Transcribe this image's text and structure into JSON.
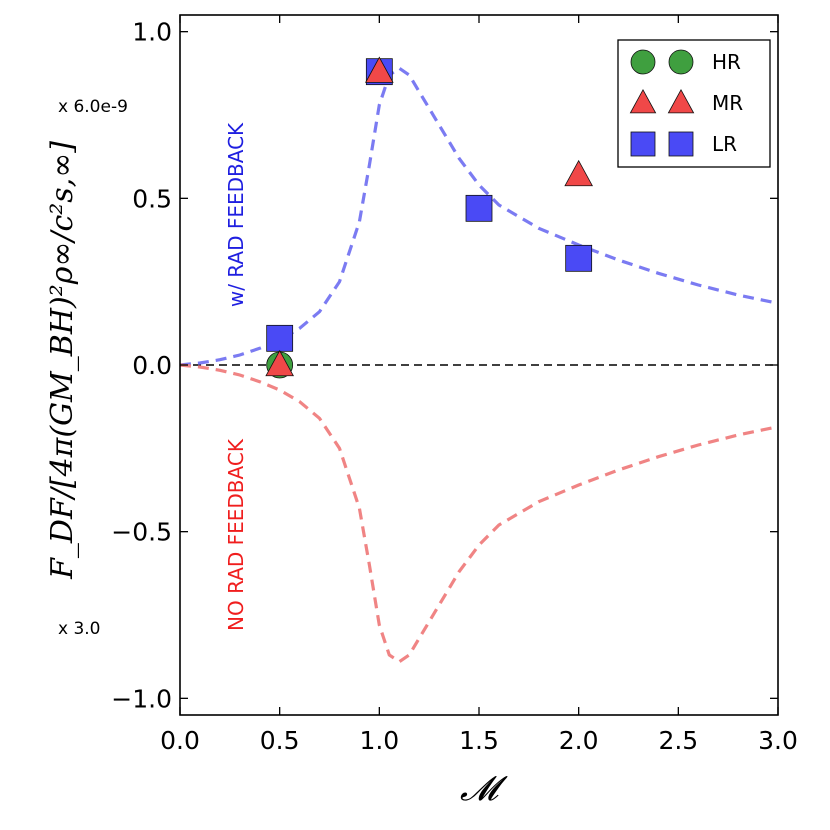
{
  "chart_data": {
    "type": "scatter",
    "title": "",
    "xlabel": "𝓜",
    "ylabel": "F_DF/[4π(GM_BH)²ρ∞/c²s,∞]",
    "xlim": [
      0.0,
      3.0
    ],
    "ylim": [
      -1.05,
      1.05
    ],
    "xticks": [
      "0.0",
      "0.5",
      "1.0",
      "1.5",
      "2.0",
      "2.5",
      "3.0"
    ],
    "yticks": [
      "−1.0",
      "−0.5",
      "0.0",
      "0.5",
      "1.0"
    ],
    "xtick_values": [
      0.0,
      0.5,
      1.0,
      1.5,
      2.0,
      2.5,
      3.0
    ],
    "ytick_values": [
      -1.0,
      -0.5,
      0.0,
      0.5,
      1.0
    ],
    "legend_position": "top-right",
    "series": [
      {
        "name": "HR",
        "marker": "circle",
        "color": "#3f9f3f",
        "points": [
          {
            "x": 0.5,
            "y": 0.0
          }
        ]
      },
      {
        "name": "MR",
        "marker": "triangle",
        "color": "#f04848",
        "points": [
          {
            "x": 0.5,
            "y": 0.0
          },
          {
            "x": 1.0,
            "y": 0.88
          },
          {
            "x": 2.0,
            "y": 0.57
          }
        ]
      },
      {
        "name": "LR",
        "marker": "square",
        "color": "#4a4af5",
        "points": [
          {
            "x": 0.5,
            "y": 0.08
          },
          {
            "x": 1.0,
            "y": 0.88
          },
          {
            "x": 1.5,
            "y": 0.47
          },
          {
            "x": 2.0,
            "y": 0.32
          }
        ]
      }
    ],
    "curves": [
      {
        "name": "w/ RAD FEEDBACK",
        "color": "#7b7bf2",
        "style": "dashed",
        "points": [
          [
            0.0,
            0.0
          ],
          [
            0.1,
            0.006
          ],
          [
            0.2,
            0.016
          ],
          [
            0.3,
            0.03
          ],
          [
            0.4,
            0.05
          ],
          [
            0.5,
            0.075
          ],
          [
            0.6,
            0.11
          ],
          [
            0.7,
            0.16
          ],
          [
            0.8,
            0.25
          ],
          [
            0.9,
            0.43
          ],
          [
            0.95,
            0.6
          ],
          [
            1.0,
            0.78
          ],
          [
            1.05,
            0.87
          ],
          [
            1.1,
            0.89
          ],
          [
            1.15,
            0.87
          ],
          [
            1.2,
            0.82
          ],
          [
            1.3,
            0.72
          ],
          [
            1.4,
            0.62
          ],
          [
            1.5,
            0.54
          ],
          [
            1.6,
            0.48
          ],
          [
            1.8,
            0.41
          ],
          [
            2.0,
            0.36
          ],
          [
            2.2,
            0.315
          ],
          [
            2.4,
            0.275
          ],
          [
            2.6,
            0.24
          ],
          [
            2.8,
            0.21
          ],
          [
            3.0,
            0.185
          ]
        ]
      },
      {
        "name": "NO RAD FEEDBACK",
        "color": "#f08484",
        "style": "dashed",
        "points": [
          [
            0.0,
            0.0
          ],
          [
            0.1,
            -0.006
          ],
          [
            0.2,
            -0.016
          ],
          [
            0.3,
            -0.03
          ],
          [
            0.4,
            -0.05
          ],
          [
            0.5,
            -0.075
          ],
          [
            0.6,
            -0.11
          ],
          [
            0.7,
            -0.16
          ],
          [
            0.8,
            -0.25
          ],
          [
            0.9,
            -0.43
          ],
          [
            0.95,
            -0.6
          ],
          [
            1.0,
            -0.78
          ],
          [
            1.05,
            -0.87
          ],
          [
            1.1,
            -0.89
          ],
          [
            1.15,
            -0.87
          ],
          [
            1.2,
            -0.82
          ],
          [
            1.3,
            -0.72
          ],
          [
            1.4,
            -0.62
          ],
          [
            1.5,
            -0.54
          ],
          [
            1.6,
            -0.48
          ],
          [
            1.8,
            -0.41
          ],
          [
            2.0,
            -0.36
          ],
          [
            2.2,
            -0.315
          ],
          [
            2.4,
            -0.275
          ],
          [
            2.6,
            -0.24
          ],
          [
            2.8,
            -0.21
          ],
          [
            3.0,
            -0.185
          ]
        ]
      }
    ],
    "zero_line": {
      "y": 0.0,
      "color": "#000000",
      "style": "dashed"
    },
    "annotations": [
      {
        "text": "w/ RAD FEEDBACK",
        "color": "#1f1fe0"
      },
      {
        "text": "NO RAD FEEDBACK",
        "color": "#f01e1e"
      }
    ],
    "scale_labels": {
      "upper": "x 6.0e-9",
      "lower": "x 3.0"
    }
  }
}
